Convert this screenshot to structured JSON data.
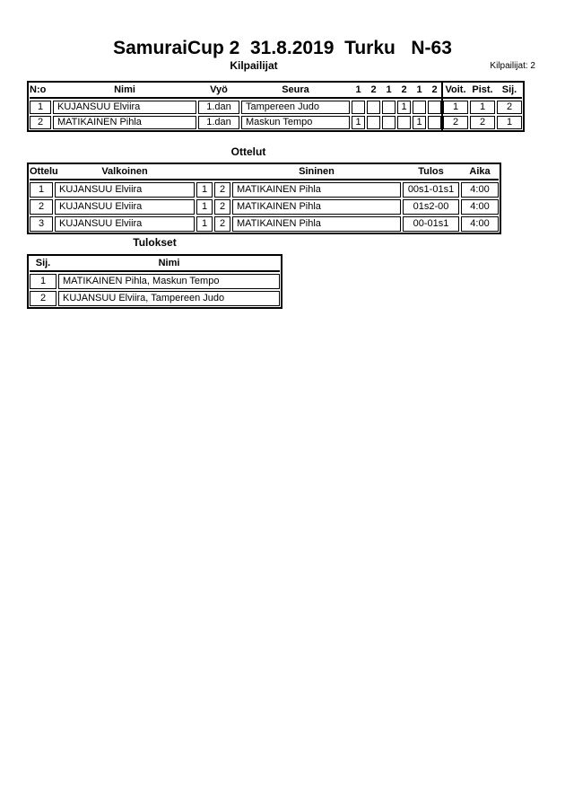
{
  "page": {
    "title": "SamuraiCup 2  31.8.2019  Turku   N-63",
    "competitor_count_label": "Kilpailijat: 2"
  },
  "colors": {
    "ink": "#000000",
    "paper": "#ffffff"
  },
  "kilpailijat": {
    "heading": "Kilpailijat",
    "headers": [
      "N:o",
      "Nimi",
      "Vyö",
      "Seura",
      "1",
      "2",
      "1",
      "2",
      "1",
      "2",
      "Voit.",
      "Pist.",
      "Sij."
    ],
    "rows": [
      [
        "1",
        "KUJANSUU Elviira",
        "1.dan",
        "Tampereen Judo",
        "",
        "",
        "",
        "1",
        "",
        "",
        "1",
        "1",
        "2"
      ],
      [
        "2",
        "MATIKAINEN Pihla",
        "1.dan",
        "Maskun Tempo",
        "1",
        "",
        "",
        "",
        "1",
        "",
        "2",
        "2",
        "1"
      ]
    ]
  },
  "ottelut": {
    "heading": "Ottelut",
    "headers": [
      "Ottelu",
      "Valkoinen",
      "",
      "",
      "Sininen",
      "Tulos",
      "Aika"
    ],
    "rows": [
      [
        "1",
        "KUJANSUU Elviira",
        "1",
        "2",
        "MATIKAINEN Pihla",
        "00s1-01s1",
        "4:00"
      ],
      [
        "2",
        "KUJANSUU Elviira",
        "1",
        "2",
        "MATIKAINEN Pihla",
        "01s2-00",
        "4:00"
      ],
      [
        "3",
        "KUJANSUU Elviira",
        "1",
        "2",
        "MATIKAINEN Pihla",
        "00-01s1",
        "4:00"
      ]
    ]
  },
  "tulokset": {
    "heading": "Tulokset",
    "headers": [
      "Sij.",
      "Nimi"
    ],
    "rows": [
      [
        "1",
        "MATIKAINEN Pihla, Maskun Tempo"
      ],
      [
        "2",
        "KUJANSUU Elviira, Tampereen Judo"
      ]
    ]
  }
}
